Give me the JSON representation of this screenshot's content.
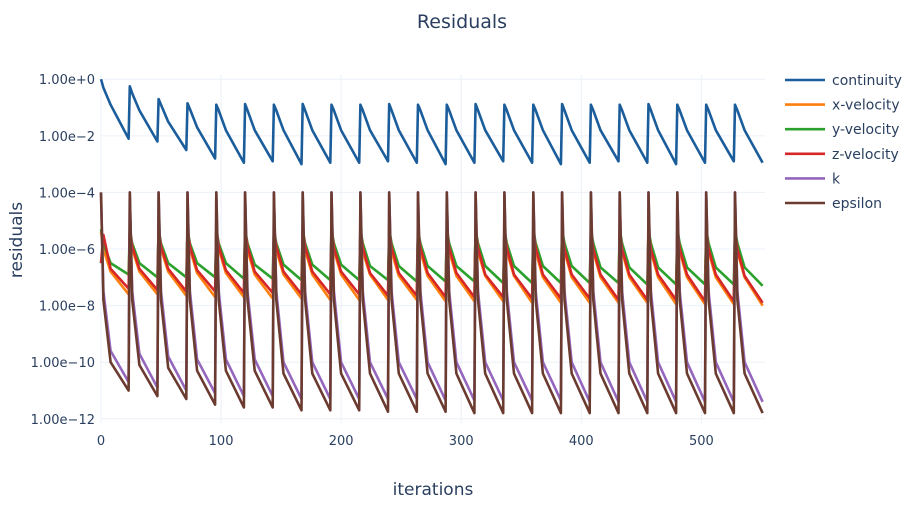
{
  "chart_data": {
    "type": "line",
    "title": "Residuals",
    "xlabel": "iterations",
    "ylabel": "residuals",
    "xscale": "linear",
    "yscale": "log",
    "xlim": [
      0,
      553
    ],
    "ylim_log10": [
      -12.15,
      0.15
    ],
    "xticks": [
      0,
      100,
      200,
      300,
      400,
      500
    ],
    "xtick_labels": [
      "0",
      "100",
      "200",
      "300",
      "400",
      "500"
    ],
    "yticks_log10": [
      0,
      -2,
      -4,
      -6,
      -8,
      -10,
      -12
    ],
    "ytick_labels": [
      "1.00e+0",
      "1.00e−2",
      "1.00e−4",
      "1.00e−6",
      "1.00e−8",
      "1.00e−10",
      "1.00e−12"
    ],
    "grid": true,
    "legend_position": "right",
    "x_cycle_offsets": [
      0,
      2,
      8,
      23
    ],
    "cycle_period": 24,
    "cycle_count": 23,
    "series": [
      {
        "name": "continuity",
        "color": "#1b5d9b",
        "y_log10_by_cycle": [
          [
            0,
            -0.3,
            -0.9,
            -2.1
          ],
          [
            -0.25,
            -0.5,
            -1.1,
            -2.2
          ],
          [
            -0.7,
            -0.9,
            -1.5,
            -2.5
          ],
          [
            -0.85,
            -1.05,
            -1.7,
            -2.8
          ],
          [
            -0.9,
            -1.1,
            -1.8,
            -2.95
          ],
          [
            -0.88,
            -1.1,
            -1.8,
            -2.9
          ],
          [
            -0.9,
            -1.1,
            -1.8,
            -3.0
          ],
          [
            -0.87,
            -1.1,
            -1.8,
            -2.95
          ],
          [
            -0.9,
            -1.1,
            -1.8,
            -2.95
          ],
          [
            -0.9,
            -1.1,
            -1.8,
            -2.9
          ],
          [
            -0.88,
            -1.1,
            -1.8,
            -2.95
          ],
          [
            -0.9,
            -1.1,
            -1.8,
            -3.0
          ],
          [
            -0.9,
            -1.1,
            -1.8,
            -2.95
          ],
          [
            -0.88,
            -1.1,
            -1.8,
            -2.9
          ],
          [
            -0.9,
            -1.1,
            -1.8,
            -2.95
          ],
          [
            -0.9,
            -1.1,
            -1.8,
            -3.0
          ],
          [
            -0.88,
            -1.1,
            -1.8,
            -2.95
          ],
          [
            -0.9,
            -1.1,
            -1.8,
            -2.9
          ],
          [
            -0.9,
            -1.1,
            -1.8,
            -2.95
          ],
          [
            -0.88,
            -1.1,
            -1.8,
            -3.0
          ],
          [
            -0.9,
            -1.1,
            -1.8,
            -2.95
          ],
          [
            -0.9,
            -1.1,
            -1.8,
            -2.9
          ],
          [
            -0.9,
            -1.1,
            -1.8,
            -2.95
          ]
        ]
      },
      {
        "name": "x-velocity",
        "color": "#ff7f0e",
        "y_log10_by_cycle": [
          [
            -5.4,
            -6.0,
            -6.8,
            -7.6
          ],
          [
            -5.4,
            -6.0,
            -6.8,
            -7.6
          ],
          [
            -5.4,
            -6.0,
            -6.8,
            -7.65
          ],
          [
            -5.4,
            -6.0,
            -6.85,
            -7.7
          ],
          [
            -5.4,
            -6.0,
            -6.85,
            -7.7
          ],
          [
            -5.4,
            -6.05,
            -6.9,
            -7.75
          ],
          [
            -5.4,
            -6.05,
            -6.9,
            -7.75
          ],
          [
            -5.4,
            -6.05,
            -6.9,
            -7.8
          ],
          [
            -5.4,
            -6.05,
            -6.9,
            -7.8
          ],
          [
            -5.4,
            -6.1,
            -6.9,
            -7.8
          ],
          [
            -5.4,
            -6.1,
            -6.95,
            -7.8
          ],
          [
            -5.4,
            -6.1,
            -6.95,
            -7.85
          ],
          [
            -5.4,
            -6.1,
            -6.95,
            -7.85
          ],
          [
            -5.4,
            -6.1,
            -6.95,
            -7.85
          ],
          [
            -5.4,
            -6.1,
            -6.95,
            -7.9
          ],
          [
            -5.4,
            -6.1,
            -7.0,
            -7.9
          ],
          [
            -5.4,
            -6.1,
            -7.0,
            -7.9
          ],
          [
            -5.4,
            -6.1,
            -7.0,
            -7.9
          ],
          [
            -5.4,
            -6.1,
            -7.0,
            -7.9
          ],
          [
            -5.4,
            -6.1,
            -7.0,
            -7.95
          ],
          [
            -5.4,
            -6.1,
            -7.0,
            -7.95
          ],
          [
            -5.4,
            -6.1,
            -7.0,
            -7.95
          ],
          [
            -5.4,
            -6.1,
            -7.0,
            -8.0
          ]
        ]
      },
      {
        "name": "y-velocity",
        "color": "#2ca02c",
        "y_log10_by_cycle": [
          [
            -5.3,
            -5.8,
            -6.5,
            -6.9
          ],
          [
            -5.3,
            -5.8,
            -6.5,
            -7.0
          ],
          [
            -5.3,
            -5.8,
            -6.5,
            -7.0
          ],
          [
            -5.3,
            -5.8,
            -6.5,
            -7.0
          ],
          [
            -5.3,
            -5.8,
            -6.5,
            -7.05
          ],
          [
            -5.3,
            -5.8,
            -6.55,
            -7.05
          ],
          [
            -5.3,
            -5.8,
            -6.55,
            -7.1
          ],
          [
            -5.3,
            -5.8,
            -6.55,
            -7.1
          ],
          [
            -5.3,
            -5.8,
            -6.55,
            -7.1
          ],
          [
            -5.3,
            -5.8,
            -6.6,
            -7.1
          ],
          [
            -5.3,
            -5.8,
            -6.6,
            -7.15
          ],
          [
            -5.3,
            -5.8,
            -6.6,
            -7.15
          ],
          [
            -5.3,
            -5.8,
            -6.6,
            -7.15
          ],
          [
            -5.3,
            -5.8,
            -6.6,
            -7.2
          ],
          [
            -5.3,
            -5.8,
            -6.6,
            -7.2
          ],
          [
            -5.3,
            -5.8,
            -6.6,
            -7.2
          ],
          [
            -5.3,
            -5.8,
            -6.6,
            -7.2
          ],
          [
            -5.3,
            -5.8,
            -6.65,
            -7.2
          ],
          [
            -5.3,
            -5.8,
            -6.65,
            -7.25
          ],
          [
            -5.3,
            -5.8,
            -6.65,
            -7.25
          ],
          [
            -5.3,
            -5.8,
            -6.65,
            -7.25
          ],
          [
            -5.3,
            -5.8,
            -6.65,
            -7.25
          ],
          [
            -5.3,
            -5.8,
            -6.65,
            -7.3
          ]
        ]
      },
      {
        "name": "z-velocity",
        "color": "#d62728",
        "y_log10_by_cycle": [
          [
            -6.5,
            -5.5,
            -6.7,
            -7.4
          ],
          [
            -5.3,
            -5.9,
            -6.7,
            -7.45
          ],
          [
            -5.3,
            -5.9,
            -6.7,
            -7.5
          ],
          [
            -5.3,
            -5.9,
            -6.75,
            -7.5
          ],
          [
            -5.3,
            -5.9,
            -6.75,
            -7.55
          ],
          [
            -5.3,
            -5.9,
            -6.8,
            -7.55
          ],
          [
            -5.3,
            -5.9,
            -6.8,
            -7.6
          ],
          [
            -5.3,
            -5.9,
            -6.8,
            -7.6
          ],
          [
            -5.3,
            -5.95,
            -6.8,
            -7.6
          ],
          [
            -5.3,
            -5.95,
            -6.85,
            -7.65
          ],
          [
            -5.3,
            -5.95,
            -6.85,
            -7.65
          ],
          [
            -5.3,
            -5.95,
            -6.85,
            -7.7
          ],
          [
            -5.3,
            -5.95,
            -6.85,
            -7.7
          ],
          [
            -5.3,
            -5.95,
            -6.9,
            -7.7
          ],
          [
            -5.3,
            -5.95,
            -6.9,
            -7.75
          ],
          [
            -5.3,
            -5.95,
            -6.9,
            -7.75
          ],
          [
            -5.3,
            -6.0,
            -6.9,
            -7.75
          ],
          [
            -5.3,
            -6.0,
            -6.9,
            -7.8
          ],
          [
            -5.3,
            -6.0,
            -6.9,
            -7.8
          ],
          [
            -5.3,
            -6.0,
            -6.9,
            -7.8
          ],
          [
            -5.3,
            -6.0,
            -6.9,
            -7.85
          ],
          [
            -5.3,
            -6.0,
            -6.9,
            -7.85
          ],
          [
            -5.3,
            -6.0,
            -6.95,
            -7.9
          ]
        ]
      },
      {
        "name": "k",
        "color": "#9467bd",
        "y_log10_by_cycle": [
          [
            -4.0,
            -7.5,
            -9.6,
            -10.7
          ],
          [
            -4.0,
            -7.5,
            -9.7,
            -10.9
          ],
          [
            -4.0,
            -7.5,
            -9.8,
            -11.0
          ],
          [
            -4.0,
            -7.5,
            -9.9,
            -11.1
          ],
          [
            -4.0,
            -7.5,
            -9.9,
            -11.2
          ],
          [
            -4.0,
            -7.5,
            -9.9,
            -11.2
          ],
          [
            -4.0,
            -7.5,
            -10.0,
            -11.3
          ],
          [
            -4.0,
            -7.5,
            -10.0,
            -11.3
          ],
          [
            -4.0,
            -7.5,
            -10.0,
            -11.3
          ],
          [
            -4.0,
            -7.5,
            -10.0,
            -11.3
          ],
          [
            -4.0,
            -7.5,
            -10.0,
            -11.3
          ],
          [
            -4.0,
            -7.5,
            -10.0,
            -11.35
          ],
          [
            -4.0,
            -7.5,
            -10.0,
            -11.35
          ],
          [
            -4.0,
            -7.5,
            -10.0,
            -11.35
          ],
          [
            -4.0,
            -7.5,
            -10.0,
            -11.35
          ],
          [
            -4.0,
            -7.5,
            -10.0,
            -11.35
          ],
          [
            -4.0,
            -7.5,
            -10.0,
            -11.4
          ],
          [
            -4.0,
            -7.5,
            -10.0,
            -11.4
          ],
          [
            -4.0,
            -7.5,
            -10.0,
            -11.4
          ],
          [
            -4.0,
            -7.5,
            -10.0,
            -11.4
          ],
          [
            -4.0,
            -7.5,
            -10.0,
            -11.4
          ],
          [
            -4.0,
            -7.5,
            -10.0,
            -11.4
          ],
          [
            -4.0,
            -7.5,
            -10.0,
            -11.4
          ]
        ]
      },
      {
        "name": "epsilon",
        "color": "#6b3b30",
        "y_log10_by_cycle": [
          [
            -4.0,
            -7.8,
            -10.0,
            -11.0
          ],
          [
            -4.0,
            -7.8,
            -10.1,
            -11.2
          ],
          [
            -4.0,
            -7.8,
            -10.2,
            -11.3
          ],
          [
            -4.0,
            -7.8,
            -10.3,
            -11.5
          ],
          [
            -4.0,
            -7.8,
            -10.3,
            -11.6
          ],
          [
            -4.0,
            -7.8,
            -10.3,
            -11.6
          ],
          [
            -4.0,
            -7.8,
            -10.4,
            -11.7
          ],
          [
            -4.0,
            -7.8,
            -10.4,
            -11.7
          ],
          [
            -4.0,
            -7.8,
            -10.4,
            -11.7
          ],
          [
            -4.0,
            -7.8,
            -10.4,
            -11.75
          ],
          [
            -4.0,
            -7.8,
            -10.4,
            -11.75
          ],
          [
            -4.0,
            -7.8,
            -10.4,
            -11.75
          ],
          [
            -4.0,
            -7.8,
            -10.4,
            -11.8
          ],
          [
            -4.0,
            -7.8,
            -10.4,
            -11.8
          ],
          [
            -4.0,
            -7.8,
            -10.4,
            -11.8
          ],
          [
            -4.0,
            -7.8,
            -10.4,
            -11.8
          ],
          [
            -4.0,
            -7.8,
            -10.4,
            -11.8
          ],
          [
            -4.0,
            -7.8,
            -10.4,
            -11.8
          ],
          [
            -4.0,
            -7.8,
            -10.4,
            -11.8
          ],
          [
            -4.0,
            -7.8,
            -10.4,
            -11.8
          ],
          [
            -4.0,
            -7.8,
            -10.4,
            -11.8
          ],
          [
            -4.0,
            -7.8,
            -10.4,
            -11.8
          ],
          [
            -4.0,
            -7.8,
            -10.4,
            -11.8
          ]
        ]
      }
    ]
  }
}
